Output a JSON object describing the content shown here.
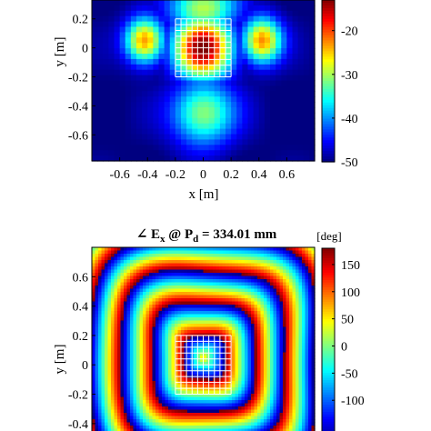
{
  "chart_data": [
    {
      "type": "heatmap",
      "title": "",
      "xlabel": "x [m]",
      "ylabel": "y [m]",
      "xlim": [
        -0.8,
        0.8
      ],
      "ylim": [
        -0.78,
        0.33
      ],
      "x_ticks": [
        -0.6,
        -0.4,
        -0.2,
        0,
        0.2,
        0.4,
        0.6
      ],
      "x_tick_labels": [
        "-0.6",
        "-0.4",
        "-0.2",
        "0",
        "0.2",
        "0.4",
        "0.6"
      ],
      "y_ticks": [
        0.2,
        0,
        -0.2,
        -0.4,
        -0.6
      ],
      "y_tick_labels": [
        "0.2",
        "0",
        "-0.2",
        "-0.4",
        "-0.6"
      ],
      "colorbar": {
        "colormap": "jet",
        "range": [
          -50,
          -13
        ],
        "ticks": [
          -20,
          -30,
          -40,
          -50
        ],
        "tick_labels": [
          "-20",
          "-30",
          "-40",
          "-50"
        ]
      },
      "overlay_grid": {
        "x_range": [
          -0.2,
          0.2
        ],
        "y_range": [
          -0.2,
          0.2
        ],
        "divisions": 10,
        "color": "#ffffff"
      },
      "field_description_points": [
        {
          "x": 0,
          "y": 0,
          "value": -13
        },
        {
          "x": 0.4,
          "y": 0.05,
          "value": -22
        },
        {
          "x": -0.4,
          "y": 0.05,
          "value": -22
        },
        {
          "x": 0,
          "y": -0.4,
          "value": -30
        },
        {
          "x": 0.7,
          "y": -0.7,
          "value": -48
        },
        {
          "x": -0.7,
          "y": -0.7,
          "value": -48
        }
      ]
    },
    {
      "type": "heatmap",
      "title_parts": [
        "∠ E",
        "x",
        " @ P",
        "d",
        " = 334.01 mm"
      ],
      "xlabel": "",
      "ylabel": "y [m]",
      "xlim": [
        -0.8,
        0.8
      ],
      "ylim": [
        -0.5,
        0.8
      ],
      "y_ticks": [
        0.6,
        0.4,
        0.2,
        0,
        -0.2,
        -0.4
      ],
      "y_tick_labels": [
        "0.6",
        "0.4",
        "0.2",
        "0",
        "-0.2",
        "-0.4"
      ],
      "colorbar": {
        "colormap": "jet",
        "unit": "[deg]",
        "range": [
          -180,
          180
        ],
        "ticks": [
          150,
          100,
          50,
          0,
          -50,
          -100
        ],
        "tick_labels": [
          "150",
          "100",
          "50",
          "0",
          "-50",
          "-100"
        ]
      },
      "overlay_grid": {
        "x_range": [
          -0.2,
          0.2
        ],
        "y_range": [
          -0.2,
          0.2
        ],
        "divisions": 10,
        "color": "#ffffff"
      },
      "phase_model": {
        "center_phase_deg": 60,
        "ring_period_m": 0.22,
        "shape": "rounded-square"
      }
    }
  ]
}
